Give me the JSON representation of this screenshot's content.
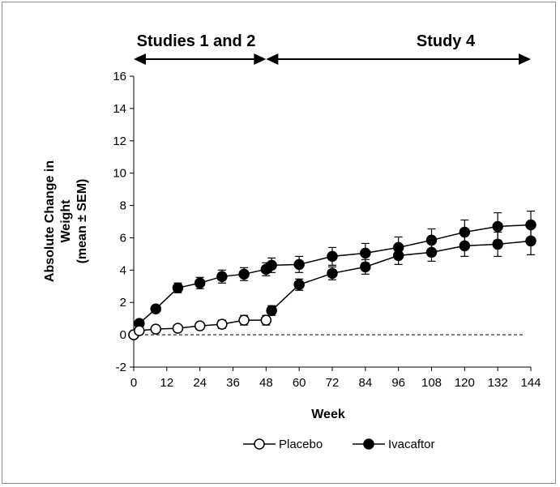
{
  "chart_data": {
    "type": "line",
    "xlabel": "Week",
    "ylabel_lines": [
      "Absolute Change in",
      "Weight",
      "(mean ± SEM)"
    ],
    "x_ticks": [
      0,
      12,
      24,
      36,
      48,
      60,
      72,
      84,
      96,
      108,
      120,
      132,
      144
    ],
    "y_ticks": [
      -2,
      0,
      2,
      4,
      6,
      8,
      10,
      12,
      14,
      16
    ],
    "xlim": [
      0,
      144
    ],
    "ylim": [
      -2,
      16
    ],
    "reference_line": {
      "y": 0,
      "style": "dashed"
    },
    "periods": [
      {
        "label": "Studies 1 and 2",
        "x_start": 0,
        "x_end": 48
      },
      {
        "label": "Study 4",
        "x_start": 48,
        "x_end": 144
      }
    ],
    "series": [
      {
        "name": "Placebo",
        "marker": "open-circle",
        "segments": [
          [
            {
              "x": 0,
              "y": 0.0,
              "err": 0.0
            },
            {
              "x": 2,
              "y": 0.25,
              "err": 0.1
            },
            {
              "x": 8,
              "y": 0.35,
              "err": 0.1
            },
            {
              "x": 16,
              "y": 0.4,
              "err": 0.15
            },
            {
              "x": 24,
              "y": 0.55,
              "err": 0.2
            },
            {
              "x": 32,
              "y": 0.65,
              "err": 0.25
            },
            {
              "x": 40,
              "y": 0.9,
              "err": 0.3
            },
            {
              "x": 48,
              "y": 0.9,
              "err": 0.3
            }
          ],
          [
            {
              "x": 50,
              "y": 1.5,
              "err": 0.3
            },
            {
              "x": 60,
              "y": 3.1,
              "err": 0.35
            },
            {
              "x": 72,
              "y": 3.8,
              "err": 0.4
            },
            {
              "x": 84,
              "y": 4.2,
              "err": 0.45
            },
            {
              "x": 96,
              "y": 4.9,
              "err": 0.55
            },
            {
              "x": 108,
              "y": 5.1,
              "err": 0.55
            },
            {
              "x": 120,
              "y": 5.5,
              "err": 0.65
            },
            {
              "x": 132,
              "y": 5.6,
              "err": 0.75
            },
            {
              "x": 144,
              "y": 5.8,
              "err": 0.85
            }
          ]
        ],
        "filled_points_x": [
          50,
          60,
          72,
          84,
          96,
          108,
          120,
          132,
          144
        ]
      },
      {
        "name": "Ivacaftor",
        "marker": "filled-circle",
        "segments": [
          [
            {
              "x": 0,
              "y": 0.0,
              "err": 0.0
            },
            {
              "x": 2,
              "y": 0.7,
              "err": 0.15
            },
            {
              "x": 8,
              "y": 1.6,
              "err": 0.2
            },
            {
              "x": 16,
              "y": 2.9,
              "err": 0.3
            },
            {
              "x": 24,
              "y": 3.2,
              "err": 0.35
            },
            {
              "x": 32,
              "y": 3.6,
              "err": 0.4
            },
            {
              "x": 40,
              "y": 3.75,
              "err": 0.4
            },
            {
              "x": 48,
              "y": 4.05,
              "err": 0.4
            },
            {
              "x": 50,
              "y": 4.3,
              "err": 0.45
            },
            {
              "x": 60,
              "y": 4.35,
              "err": 0.5
            },
            {
              "x": 72,
              "y": 4.85,
              "err": 0.55
            },
            {
              "x": 84,
              "y": 5.05,
              "err": 0.6
            },
            {
              "x": 96,
              "y": 5.4,
              "err": 0.65
            },
            {
              "x": 108,
              "y": 5.85,
              "err": 0.7
            },
            {
              "x": 120,
              "y": 6.35,
              "err": 0.75
            },
            {
              "x": 132,
              "y": 6.7,
              "err": 0.85
            },
            {
              "x": 144,
              "y": 6.8,
              "err": 0.85
            }
          ]
        ]
      }
    ],
    "legend": {
      "position": "bottom",
      "entries": [
        "Placebo",
        "Ivacaftor"
      ]
    },
    "grid": false
  }
}
